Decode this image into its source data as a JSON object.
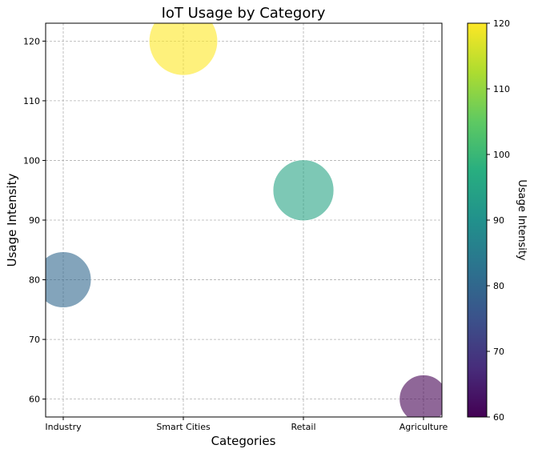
{
  "chart_data": {
    "type": "scatter",
    "title": "IoT Usage by Category",
    "xlabel": "Categories",
    "ylabel": "Usage Intensity",
    "categories": [
      "Industry",
      "Smart Cities",
      "Retail",
      "Agriculture"
    ],
    "values": [
      80,
      120,
      95,
      60
    ],
    "bubble_sizes": [
      80,
      120,
      95,
      60
    ],
    "ylim": [
      57,
      123
    ],
    "yticks": [
      60,
      70,
      80,
      90,
      100,
      110,
      120
    ],
    "grid": true,
    "colormap": "viridis",
    "colorbar": {
      "label": "Usage Intensity",
      "range": [
        60,
        120
      ],
      "ticks": [
        60,
        70,
        80,
        90,
        100,
        110,
        120
      ]
    }
  }
}
